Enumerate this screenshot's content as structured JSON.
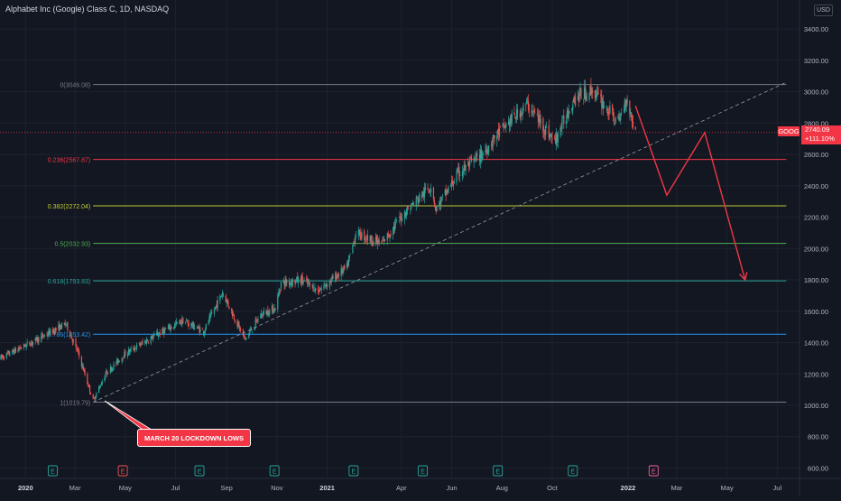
{
  "header": {
    "symbol_title": "Alphabet Inc (Google) Class C, 1D, NASDAQ",
    "currency": "USD"
  },
  "price_scale": {
    "ticker": "GOOG",
    "last_price": "2740.09",
    "change": "+111.10%"
  },
  "annotation": {
    "lockdown_label": "MARCH 20 LOCKDOWN LOWS"
  },
  "colors": {
    "background": "#131722",
    "up": "#26a69a",
    "down": "#ef5350",
    "accent_red": "#f23645"
  },
  "chart_data": {
    "type": "candlestick",
    "title": "Alphabet Inc (Google) Class C, 1D, NASDAQ",
    "y_unit": "USD",
    "ylim": [
      560,
      3360
    ],
    "y_ticks": [
      600,
      800,
      1000,
      1200,
      1400,
      1600,
      1800,
      2000,
      2200,
      2400,
      2600,
      2800,
      3000,
      3200,
      3400
    ],
    "y_tick_labels": [
      "600.00",
      "800.00",
      "1000.00",
      "1200.00",
      "1400.00",
      "1600.00",
      "1800.00",
      "2000.00",
      "2200.00",
      "2400.00",
      "2600.00",
      "2800.00",
      "3000.00",
      "3200.00",
      "3400.00"
    ],
    "xlim": [
      "2019-12-01",
      "2022-07-28"
    ],
    "x_ticks": [
      {
        "date": "2020-01-01",
        "label": "2020"
      },
      {
        "date": "2020-03-01",
        "label": "Mar"
      },
      {
        "date": "2020-05-01",
        "label": "May"
      },
      {
        "date": "2020-07-01",
        "label": "Jul"
      },
      {
        "date": "2020-09-01",
        "label": "Sep"
      },
      {
        "date": "2020-11-01",
        "label": "Nov"
      },
      {
        "date": "2021-01-01",
        "label": "2021"
      },
      {
        "date": "2021-04-01",
        "label": "Apr"
      },
      {
        "date": "2021-06-01",
        "label": "Jun"
      },
      {
        "date": "2021-08-01",
        "label": "Aug"
      },
      {
        "date": "2021-10-01",
        "label": "Oct"
      },
      {
        "date": "2022-01-01",
        "label": "2022"
      },
      {
        "date": "2022-03-01",
        "label": "Mar"
      },
      {
        "date": "2022-05-01",
        "label": "May"
      },
      {
        "date": "2022-07-01",
        "label": "Jul"
      }
    ],
    "price_path": [
      [
        "2019-12-01",
        1300
      ],
      [
        "2020-01-15",
        1420
      ],
      [
        "2020-02-19",
        1520
      ],
      [
        "2020-03-05",
        1330
      ],
      [
        "2020-03-23",
        1030
      ],
      [
        "2020-04-07",
        1200
      ],
      [
        "2020-05-01",
        1330
      ],
      [
        "2020-06-08",
        1450
      ],
      [
        "2020-07-10",
        1540
      ],
      [
        "2020-08-04",
        1470
      ],
      [
        "2020-08-27",
        1720
      ],
      [
        "2020-09-23",
        1420
      ],
      [
        "2020-10-13",
        1580
      ],
      [
        "2020-10-30",
        1620
      ],
      [
        "2020-11-06",
        1780
      ],
      [
        "2020-12-01",
        1800
      ],
      [
        "2020-12-21",
        1730
      ],
      [
        "2021-01-25",
        1880
      ],
      [
        "2021-02-05",
        2100
      ],
      [
        "2021-03-08",
        2030
      ],
      [
        "2021-04-05",
        2230
      ],
      [
        "2021-05-07",
        2400
      ],
      [
        "2021-05-13",
        2250
      ],
      [
        "2021-06-09",
        2480
      ],
      [
        "2021-07-08",
        2600
      ],
      [
        "2021-07-28",
        2740
      ],
      [
        "2021-09-01",
        2920
      ],
      [
        "2021-10-04",
        2680
      ],
      [
        "2021-10-27",
        2960
      ],
      [
        "2021-11-19",
        3010
      ],
      [
        "2021-12-20",
        2800
      ],
      [
        "2021-12-30",
        2960
      ],
      [
        "2022-01-10",
        2740
      ]
    ],
    "up_color": "#26a69a",
    "down_color": "#ef5350",
    "fib_levels": [
      {
        "label": "0(3046.08)",
        "value": 3046.08,
        "color": "#787b86"
      },
      {
        "label": "0.236(2567.87)",
        "value": 2567.87,
        "color": "#f23645"
      },
      {
        "label": "0.382(2272.04)",
        "value": 2272.04,
        "color": "#c0ca33"
      },
      {
        "label": "0.5(2032.93)",
        "value": 2032.93,
        "color": "#4caf50"
      },
      {
        "label": "0.618(1793.83)",
        "value": 1793.83,
        "color": "#26a69a"
      },
      {
        "label": "0.786(1453.42)",
        "value": 1453.42,
        "color": "#2196f3"
      },
      {
        "label": "1(1019.79)",
        "value": 1019.79,
        "color": "#787b86"
      }
    ],
    "fib_range_dates": [
      "2020-03-23",
      "2022-07-12"
    ],
    "trendline": [
      [
        "2020-03-23",
        1020
      ],
      [
        "2022-07-12",
        3060
      ]
    ],
    "projection_path": [
      [
        "2022-01-10",
        2910
      ],
      [
        "2022-02-17",
        2340
      ],
      [
        "2022-04-04",
        2740
      ],
      [
        "2022-05-23",
        1800
      ]
    ],
    "current_price_line": 2740.09,
    "earnings_markers": [
      {
        "date": "2020-02-03",
        "label": "E",
        "color": "#26a69a"
      },
      {
        "date": "2020-04-28",
        "label": "E",
        "color": "#ef5350"
      },
      {
        "date": "2020-07-30",
        "label": "E",
        "color": "#26a69a"
      },
      {
        "date": "2020-10-29",
        "label": "E",
        "color": "#26a69a"
      },
      {
        "date": "2021-02-02",
        "label": "E",
        "color": "#26a69a"
      },
      {
        "date": "2021-04-27",
        "label": "E",
        "color": "#26a69a"
      },
      {
        "date": "2021-07-27",
        "label": "E",
        "color": "#26a69a"
      },
      {
        "date": "2021-10-26",
        "label": "E",
        "color": "#26a69a"
      },
      {
        "date": "2022-02-01",
        "label": "E",
        "color": "#f06292"
      }
    ]
  }
}
